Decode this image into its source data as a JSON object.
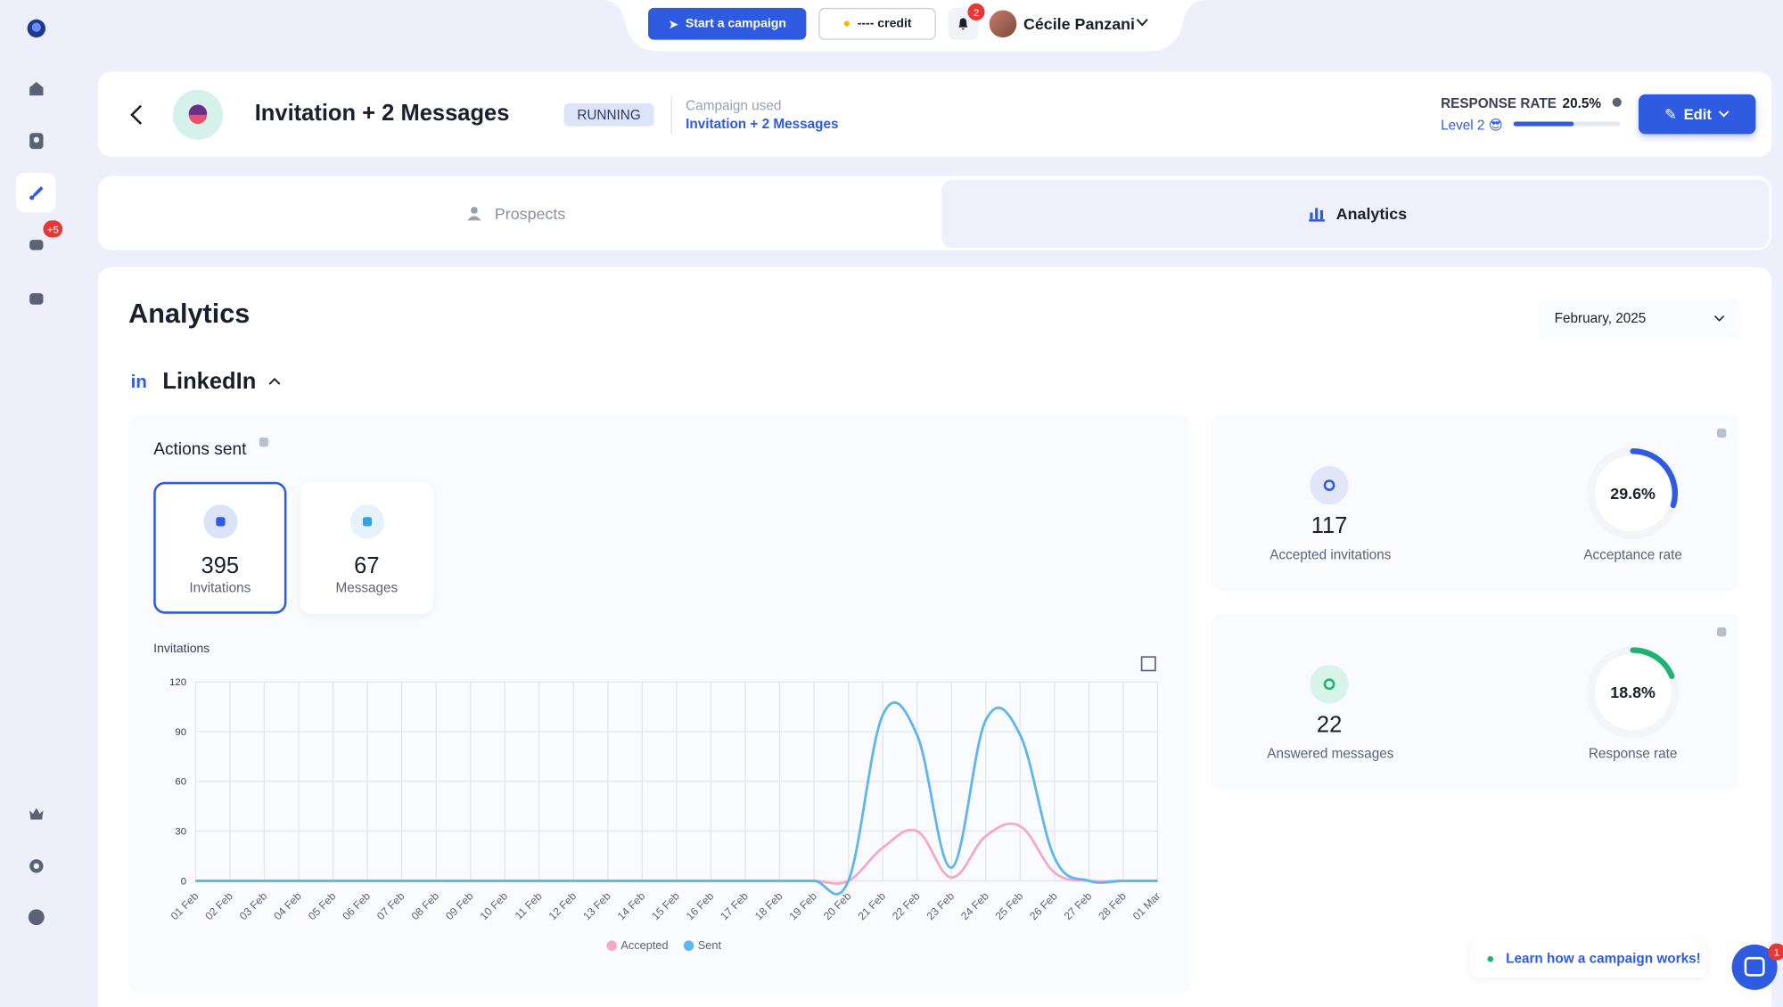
{
  "topbar": {
    "start_campaign": "Start a campaign",
    "credit": "---- credit",
    "notifications": 2,
    "user": "Cécile Panzani"
  },
  "sidebar": {
    "messages_badge": "+5"
  },
  "header": {
    "title": "Invitation + 2 Messages",
    "status": "RUNNING",
    "campaign_used_label": "Campaign used",
    "campaign_used": "Invitation + 2 Messages",
    "response_rate_label": "RESPONSE RATE",
    "response_rate": {
      "value": 20.5,
      "label": "20.5%"
    },
    "level": "Level 2 😎",
    "edit": "Edit"
  },
  "tabs": [
    "Prospects",
    "Analytics"
  ],
  "analytics": {
    "title": "Analytics",
    "period": "February, 2025",
    "channel_icon": "in",
    "channel": "LinkedIn",
    "actions_title": "Actions sent",
    "action_cards": [
      {
        "value": 395,
        "label": "Invitations"
      },
      {
        "value": 67,
        "label": "Messages"
      }
    ],
    "stats": [
      {
        "value": 117,
        "label": "Accepted invitations",
        "rate": {
          "value": 29.6,
          "label": "29.6%"
        },
        "rate_name": "Acceptance rate",
        "color": "#2f5be0"
      },
      {
        "value": 22,
        "label": "Answered messages",
        "rate": {
          "value": 18.8,
          "label": "18.8%"
        },
        "rate_name": "Response rate",
        "color": "#1db46f"
      }
    ]
  },
  "chart_data": {
    "type": "line",
    "title": "Invitations",
    "categories": [
      "01 Feb",
      "02 Feb",
      "03 Feb",
      "04 Feb",
      "05 Feb",
      "06 Feb",
      "07 Feb",
      "08 Feb",
      "09 Feb",
      "10 Feb",
      "11 Feb",
      "12 Feb",
      "13 Feb",
      "14 Feb",
      "15 Feb",
      "16 Feb",
      "17 Feb",
      "18 Feb",
      "19 Feb",
      "20 Feb",
      "21 Feb",
      "22 Feb",
      "23 Feb",
      "24 Feb",
      "25 Feb",
      "26 Feb",
      "27 Feb",
      "28 Feb",
      "01 Mar"
    ],
    "series": [
      {
        "name": "Accepted",
        "color": "#f4a9c6",
        "values": [
          0,
          0,
          0,
          0,
          0,
          0,
          0,
          0,
          0,
          0,
          0,
          0,
          0,
          0,
          0,
          0,
          0,
          0,
          0,
          0,
          20,
          30,
          2,
          27,
          33,
          5,
          0,
          0,
          0
        ]
      },
      {
        "name": "Sent",
        "color": "#5db6ee",
        "values": [
          0,
          0,
          0,
          0,
          0,
          0,
          0,
          0,
          0,
          0,
          0,
          0,
          0,
          0,
          0,
          0,
          0,
          0,
          0,
          0,
          100,
          88,
          8,
          97,
          88,
          14,
          0,
          0,
          0
        ]
      }
    ],
    "ylim": [
      0,
      120
    ],
    "yticks": [
      0,
      30,
      60,
      90,
      120
    ],
    "grid": true
  },
  "help": "Learn how a campaign works!",
  "chat_badge": 1
}
